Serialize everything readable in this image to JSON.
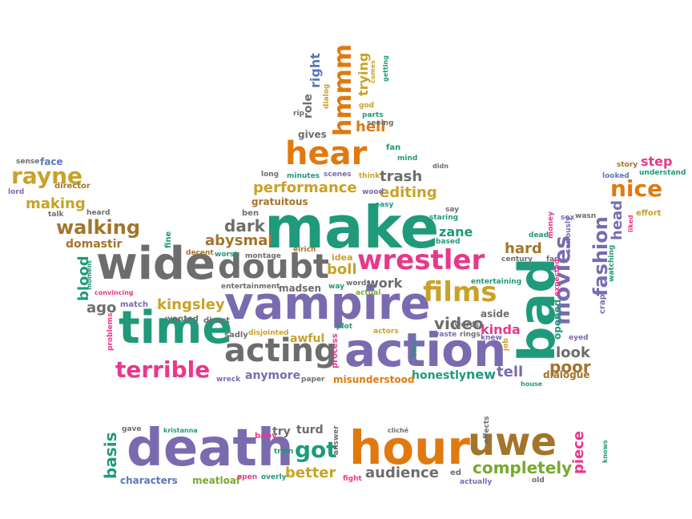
{
  "colors": {
    "orange": "#e07a10",
    "teal": "#1f9a7a",
    "gray": "#6d6d6d",
    "purple": "#7a6bb0",
    "pink": "#e8388a",
    "green": "#79a832",
    "gold": "#c9a227",
    "brown": "#a3752b",
    "blue": "#5a78b8"
  },
  "words": [
    {
      "text": "make",
      "color": "teal"
    },
    {
      "text": "vampire",
      "color": "purple"
    },
    {
      "text": "death",
      "color": "purple"
    },
    {
      "text": "action",
      "color": "purple"
    },
    {
      "text": "wide",
      "color": "gray"
    },
    {
      "text": "time",
      "color": "teal"
    },
    {
      "text": "hour",
      "color": "orange"
    },
    {
      "text": "bad",
      "color": "teal"
    },
    {
      "text": "uwe",
      "color": "brown"
    },
    {
      "text": "doubt",
      "color": "gray"
    },
    {
      "text": "wrestler",
      "color": "pink"
    },
    {
      "text": "acting",
      "color": "gray"
    },
    {
      "text": "hear",
      "color": "orange"
    },
    {
      "text": "films",
      "color": "gold"
    },
    {
      "text": "movies",
      "color": "purple"
    },
    {
      "text": "terrible",
      "color": "pink"
    },
    {
      "text": "hmmm",
      "color": "orange"
    },
    {
      "text": "nice",
      "color": "orange"
    },
    {
      "text": "rayne",
      "color": "gold"
    },
    {
      "text": "got",
      "color": "teal"
    },
    {
      "text": "completely",
      "color": "green"
    },
    {
      "text": "fashion",
      "color": "purple"
    },
    {
      "text": "walking",
      "color": "brown"
    },
    {
      "text": "performance",
      "color": "gold"
    },
    {
      "text": "audience",
      "color": "gray"
    },
    {
      "text": "better",
      "color": "gold"
    },
    {
      "text": "kingsley",
      "color": "gold"
    },
    {
      "text": "trash",
      "color": "gray"
    },
    {
      "text": "editing",
      "color": "gold"
    },
    {
      "text": "abysmal",
      "color": "brown"
    },
    {
      "text": "dark",
      "color": "gray"
    },
    {
      "text": "poor",
      "color": "brown"
    },
    {
      "text": "video",
      "color": "gray"
    },
    {
      "text": "hard",
      "color": "brown"
    },
    {
      "text": "head",
      "color": "purple"
    },
    {
      "text": "basis",
      "color": "teal"
    },
    {
      "text": "piece",
      "color": "pink"
    },
    {
      "text": "boll",
      "color": "gold"
    },
    {
      "text": "work",
      "color": "gray"
    },
    {
      "text": "kinda",
      "color": "pink"
    },
    {
      "text": "look",
      "color": "gray"
    },
    {
      "text": "tell",
      "color": "purple"
    },
    {
      "text": "new",
      "color": "teal"
    },
    {
      "text": "hell",
      "color": "orange"
    },
    {
      "text": "making",
      "color": "gold"
    },
    {
      "text": "blood",
      "color": "teal"
    },
    {
      "text": "ago",
      "color": "gray"
    },
    {
      "text": "zane",
      "color": "teal"
    },
    {
      "text": "anymore",
      "color": "purple"
    },
    {
      "text": "awful",
      "color": "gold"
    },
    {
      "text": "honestly",
      "color": "teal"
    },
    {
      "text": "step",
      "color": "pink"
    },
    {
      "text": "right",
      "color": "blue"
    },
    {
      "text": "trying",
      "color": "gold"
    },
    {
      "text": "try",
      "color": "gray"
    },
    {
      "text": "turd",
      "color": "gray"
    },
    {
      "text": "domastir",
      "color": "brown"
    },
    {
      "text": "gratuitous",
      "color": "brown"
    },
    {
      "text": "misunderstood",
      "color": "orange"
    },
    {
      "text": "opened",
      "color": "teal"
    },
    {
      "text": "dialogue",
      "color": "brown"
    },
    {
      "text": "characters",
      "color": "blue"
    },
    {
      "text": "meatloaf",
      "color": "green"
    },
    {
      "text": "role",
      "color": "gray"
    },
    {
      "text": "gives",
      "color": "gray"
    },
    {
      "text": "face",
      "color": "blue"
    },
    {
      "text": "sense",
      "color": "gray"
    },
    {
      "text": "director",
      "color": "brown"
    },
    {
      "text": "lord",
      "color": "purple"
    },
    {
      "text": "heard",
      "color": "gray"
    },
    {
      "text": "talk",
      "color": "gray"
    },
    {
      "text": "ben",
      "color": "gray"
    },
    {
      "text": "fine",
      "color": "teal"
    },
    {
      "text": "decent",
      "color": "brown"
    },
    {
      "text": "worst",
      "color": "teal"
    },
    {
      "text": "montage",
      "color": "gray"
    },
    {
      "text": "elrich",
      "color": "brown"
    },
    {
      "text": "idea",
      "color": "gold"
    },
    {
      "text": "entertainment",
      "color": "gray"
    },
    {
      "text": "madsen",
      "color": "gray"
    },
    {
      "text": "way",
      "color": "teal"
    },
    {
      "text": "words",
      "color": "gray"
    },
    {
      "text": "actual",
      "color": "green"
    },
    {
      "text": "match",
      "color": "purple"
    },
    {
      "text": "wanted",
      "color": "gray"
    },
    {
      "text": "direct",
      "color": "gray"
    },
    {
      "text": "sadly",
      "color": "gray"
    },
    {
      "text": "disjointed",
      "color": "gold"
    },
    {
      "text": "plot",
      "color": "teal"
    },
    {
      "text": "actors",
      "color": "gold"
    },
    {
      "text": "process",
      "color": "pink"
    },
    {
      "text": "wreck",
      "color": "purple"
    },
    {
      "text": "paper",
      "color": "gray"
    },
    {
      "text": "little",
      "color": "teal"
    },
    {
      "text": "waste",
      "color": "purple"
    },
    {
      "text": "swords",
      "color": "gray"
    },
    {
      "text": "rings",
      "color": "gray"
    },
    {
      "text": "knew",
      "color": "purple"
    },
    {
      "text": "aside",
      "color": "gray"
    },
    {
      "text": "job",
      "color": "gold"
    },
    {
      "text": "entertaining",
      "color": "teal"
    },
    {
      "text": "century",
      "color": "gray"
    },
    {
      "text": "far",
      "color": "gray"
    },
    {
      "text": "eyed",
      "color": "purple"
    },
    {
      "text": "dead",
      "color": "teal"
    },
    {
      "text": "money",
      "color": "pink"
    },
    {
      "text": "expected",
      "color": "pink"
    },
    {
      "text": "seriously",
      "color": "purple"
    },
    {
      "text": "sex",
      "color": "purple"
    },
    {
      "text": "wasn",
      "color": "gray"
    },
    {
      "text": "watching",
      "color": "teal"
    },
    {
      "text": "liked",
      "color": "pink"
    },
    {
      "text": "crap",
      "color": "purple"
    },
    {
      "text": "effort",
      "color": "gold"
    },
    {
      "text": "story",
      "color": "brown"
    },
    {
      "text": "understand",
      "color": "teal"
    },
    {
      "text": "looked",
      "color": "blue"
    },
    {
      "text": "house",
      "color": "teal"
    },
    {
      "text": "moment",
      "color": "teal"
    },
    {
      "text": "convincing",
      "color": "pink"
    },
    {
      "text": "problems",
      "color": "pink"
    },
    {
      "text": "gave",
      "color": "gray"
    },
    {
      "text": "kristanna",
      "color": "teal"
    },
    {
      "text": "baby",
      "color": "pink"
    },
    {
      "text": "train",
      "color": "teal"
    },
    {
      "text": "answer",
      "color": "gray"
    },
    {
      "text": "open",
      "color": "pink"
    },
    {
      "text": "overly",
      "color": "teal"
    },
    {
      "text": "fight",
      "color": "pink"
    },
    {
      "text": "cliché",
      "color": "gray"
    },
    {
      "text": "ed",
      "color": "gray"
    },
    {
      "text": "actually",
      "color": "purple"
    },
    {
      "text": "effects",
      "color": "gray"
    },
    {
      "text": "old",
      "color": "gray"
    },
    {
      "text": "knows",
      "color": "teal"
    },
    {
      "text": "dialog",
      "color": "gold"
    },
    {
      "text": "rip",
      "color": "gray"
    },
    {
      "text": "seeing",
      "color": "gray"
    },
    {
      "text": "god",
      "color": "gold"
    },
    {
      "text": "parts",
      "color": "teal"
    },
    {
      "text": "fan",
      "color": "teal"
    },
    {
      "text": "mind",
      "color": "teal"
    },
    {
      "text": "long",
      "color": "gray"
    },
    {
      "text": "minutes",
      "color": "teal"
    },
    {
      "text": "scenes",
      "color": "purple"
    },
    {
      "text": "think",
      "color": "gold"
    },
    {
      "text": "wood",
      "color": "purple"
    },
    {
      "text": "easy",
      "color": "teal"
    },
    {
      "text": "staring",
      "color": "teal"
    },
    {
      "text": "say",
      "color": "gray"
    },
    {
      "text": "based",
      "color": "teal"
    },
    {
      "text": "didn",
      "color": "gray"
    },
    {
      "text": "comes",
      "color": "gold"
    },
    {
      "text": "getting",
      "color": "teal"
    }
  ]
}
